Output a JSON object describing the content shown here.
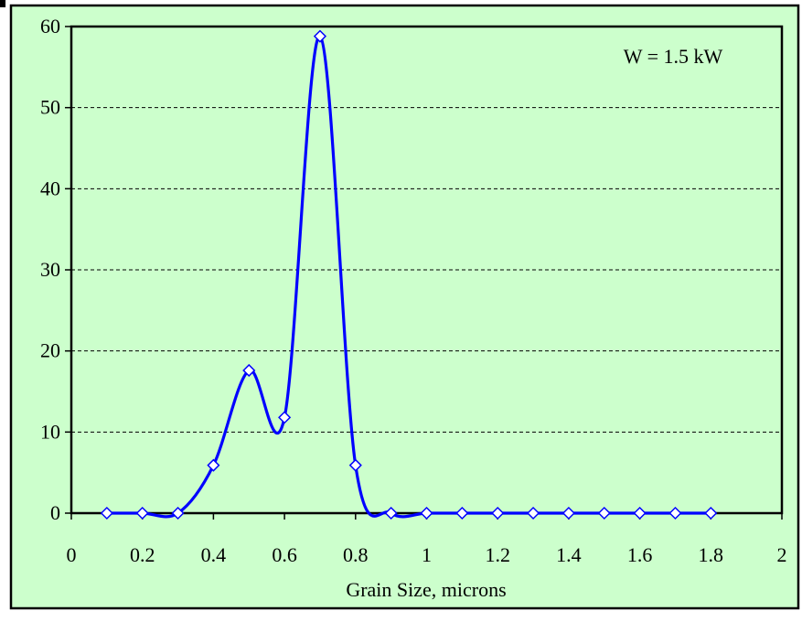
{
  "colors": {
    "chart_background": "#ccffcc",
    "plot_background": "#ccffcc",
    "series_line": "#0000ff",
    "marker_fill": "#ffffff",
    "marker_stroke": "#0000ff",
    "gridline": "#000000"
  },
  "chart_data": {
    "type": "line",
    "smooth": true,
    "marker": "diamond",
    "title": "",
    "xlabel": "Grain Size, microns",
    "ylabel": "",
    "annotation": "W = 1.5 kW",
    "annotation_position": "top-right",
    "grid": "horizontal-dashed",
    "legend": "none",
    "xlim": [
      0,
      2
    ],
    "ylim": [
      0,
      60
    ],
    "x_ticks": [
      0,
      0.2,
      0.4,
      0.6,
      0.8,
      1,
      1.2,
      1.4,
      1.6,
      1.8,
      2
    ],
    "x_tick_labels": [
      "0",
      "0.2",
      "0.4",
      "0.6",
      "0.8",
      "1",
      "1.2",
      "1.4",
      "1.6",
      "1.8",
      "2"
    ],
    "y_ticks": [
      0,
      10,
      20,
      30,
      40,
      50,
      60
    ],
    "y_tick_labels": [
      "0",
      "10",
      "20",
      "30",
      "40",
      "50",
      "60"
    ],
    "series": [
      {
        "x": [
          0.1,
          0.2,
          0.3,
          0.4,
          0.5,
          0.6,
          0.7,
          0.8,
          0.9,
          1.0,
          1.1,
          1.2,
          1.3,
          1.4,
          1.5,
          1.6,
          1.7,
          1.8
        ],
        "values": [
          0,
          0,
          0,
          5.9,
          17.6,
          11.8,
          58.8,
          5.9,
          0,
          0,
          0,
          0,
          0,
          0,
          0,
          0,
          0,
          0
        ]
      }
    ]
  }
}
